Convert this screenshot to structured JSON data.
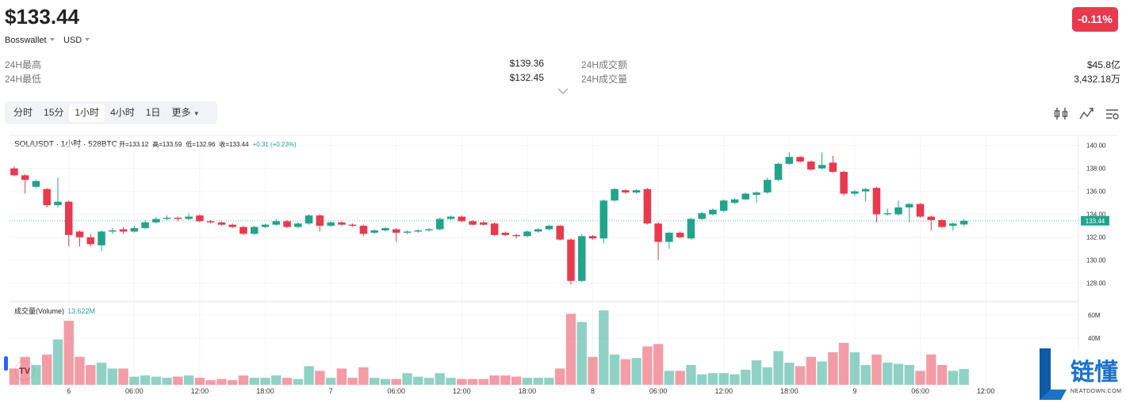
{
  "header": {
    "price": "$133.44",
    "change": "-0.11%",
    "wallet": "Bosswallet",
    "currency": "USD"
  },
  "stats": [
    {
      "label": "24H最高",
      "value": "$139.36"
    },
    {
      "label": "24H成交额",
      "value": "$45.8亿"
    },
    {
      "label": "24H最低",
      "value": "$132.45"
    },
    {
      "label": "24H成交量",
      "value": "3,432.18万"
    }
  ],
  "tabs": [
    "分时",
    "15分",
    "1小时",
    "4小时",
    "1日",
    "更多"
  ],
  "active_tab": 2,
  "chart_data": {
    "type": "candlestick",
    "title": "SOL/USDT · 1小时 · 528BTC",
    "ohlc_legend": [
      "开=133.12",
      "高=133.59",
      "低=132.96",
      "收=133.44",
      "+0.31 (+0.23%)"
    ],
    "up_color": "#22a38b",
    "down_color": "#e8394d",
    "open": [
      138.0,
      137.4,
      136.4,
      136.2,
      134.8,
      135.1,
      132.5,
      132.0,
      131.3,
      132.5,
      132.7,
      132.5,
      132.8,
      133.3,
      133.6,
      133.7,
      133.6,
      133.9,
      133.4,
      133.3,
      133.1,
      132.9,
      132.3,
      132.9,
      133.1,
      133.4,
      132.9,
      133.2,
      133.9,
      133.0,
      133.3,
      133.1,
      133.0,
      132.4,
      132.6,
      132.7,
      132.4,
      132.5,
      132.6,
      132.7,
      133.6,
      133.8,
      133.4,
      133.3,
      133.2,
      132.4,
      132.2,
      132.1,
      132.5,
      132.7,
      133.0,
      131.8,
      128.2,
      132.1,
      131.9,
      135.2,
      136.1,
      135.9,
      136.2,
      133.2,
      131.6,
      132.4,
      131.9,
      133.6,
      134.0,
      134.3,
      135.0,
      135.3,
      135.7,
      135.9,
      137.0,
      138.4,
      139.0,
      138.6,
      138.0,
      138.5,
      137.7,
      135.8,
      136.0,
      136.3,
      134.0,
      134.0,
      134.6,
      134.9,
      133.8,
      133.5,
      133.0,
      133.12
    ],
    "high": [
      138.2,
      137.5,
      137.0,
      136.3,
      137.2,
      135.2,
      132.6,
      132.3,
      132.6,
      132.8,
      132.9,
      133.0,
      133.5,
      133.8,
      133.9,
      133.8,
      134.1,
      134.0,
      133.5,
      133.4,
      133.2,
      133.0,
      133.0,
      133.2,
      133.6,
      133.5,
      133.3,
      134.0,
      134.0,
      133.4,
      133.4,
      133.2,
      133.1,
      132.7,
      132.9,
      132.8,
      132.6,
      132.7,
      132.8,
      133.7,
      133.9,
      133.9,
      133.5,
      133.4,
      133.3,
      132.5,
      132.3,
      132.6,
      132.8,
      133.1,
      133.1,
      131.9,
      132.3,
      132.2,
      135.3,
      136.3,
      136.2,
      136.2,
      136.3,
      133.3,
      132.5,
      132.5,
      133.7,
      134.2,
      134.5,
      135.3,
      135.4,
      135.9,
      136.0,
      137.2,
      138.5,
      139.4,
      139.1,
      138.7,
      139.4,
      139.1,
      137.8,
      136.1,
      136.3,
      136.4,
      134.5,
      135.2,
      135.0,
      135.0,
      133.9,
      133.6,
      133.3,
      133.59
    ],
    "low": [
      137.3,
      135.8,
      136.3,
      134.6,
      134.6,
      131.2,
      131.2,
      131.2,
      130.8,
      132.3,
      132.3,
      132.4,
      132.7,
      133.2,
      133.5,
      133.4,
      133.5,
      133.3,
      133.2,
      133.0,
      132.8,
      132.2,
      132.2,
      132.8,
      133.0,
      132.8,
      132.8,
      133.1,
      132.5,
      132.9,
      133.0,
      132.9,
      132.1,
      132.3,
      132.5,
      131.6,
      132.3,
      132.4,
      132.5,
      132.6,
      133.5,
      133.3,
      133.0,
      133.0,
      132.1,
      132.1,
      131.9,
      132.0,
      132.4,
      132.6,
      131.7,
      127.9,
      128.1,
      131.8,
      131.5,
      135.1,
      135.8,
      135.8,
      133.1,
      130.0,
      131.0,
      131.9,
      131.8,
      133.5,
      133.9,
      134.2,
      134.9,
      135.2,
      135.0,
      135.8,
      136.9,
      138.3,
      138.5,
      137.8,
      137.9,
      137.6,
      135.6,
      135.6,
      135.1,
      133.3,
      133.9,
      133.9,
      133.3,
      133.7,
      132.6,
      132.8,
      132.6,
      132.96
    ],
    "close": [
      137.4,
      137.0,
      136.9,
      134.8,
      135.1,
      132.2,
      132.0,
      131.4,
      132.5,
      132.6,
      132.5,
      132.8,
      133.3,
      133.6,
      133.7,
      133.6,
      133.8,
      133.4,
      133.3,
      133.1,
      132.9,
      132.3,
      132.9,
      133.1,
      133.4,
      132.9,
      133.2,
      133.9,
      133.0,
      133.3,
      133.1,
      133.0,
      132.3,
      132.6,
      132.8,
      132.4,
      132.5,
      132.6,
      132.7,
      133.6,
      133.8,
      133.4,
      133.1,
      133.1,
      132.2,
      132.2,
      132.1,
      132.5,
      132.7,
      133.0,
      131.8,
      128.2,
      132.1,
      131.9,
      135.2,
      136.2,
      135.9,
      136.1,
      133.2,
      131.6,
      132.4,
      132.0,
      133.6,
      134.1,
      134.4,
      135.2,
      135.3,
      135.8,
      135.9,
      137.0,
      138.4,
      139.0,
      138.6,
      137.9,
      138.3,
      137.7,
      135.8,
      136.0,
      136.2,
      134.0,
      134.1,
      134.6,
      134.9,
      133.8,
      133.5,
      132.9,
      133.2,
      133.44
    ],
    "ylim": [
      126.6,
      140.6
    ],
    "yticks": [
      {
        "value": 128,
        "label": "128.00"
      },
      {
        "value": 130,
        "label": "130.00"
      },
      {
        "value": 132,
        "label": "132.00"
      },
      {
        "value": 134,
        "label": "134.00"
      },
      {
        "value": 136,
        "label": "136.00"
      },
      {
        "value": 138,
        "label": "138.00"
      },
      {
        "value": 140,
        "label": "140.00"
      }
    ],
    "xlim": [
      -0.5,
      96.4
    ],
    "xticks": [
      {
        "value": 5,
        "label": "6"
      },
      {
        "value": 11,
        "label": "06:00"
      },
      {
        "value": 17,
        "label": "12:00"
      },
      {
        "value": 23,
        "label": "18:00"
      },
      {
        "value": 29,
        "label": "7"
      },
      {
        "value": 35,
        "label": "06:00"
      },
      {
        "value": 41,
        "label": "12:00"
      },
      {
        "value": 47,
        "label": "18:00"
      },
      {
        "value": 53,
        "label": "8"
      },
      {
        "value": 59,
        "label": "06:00"
      },
      {
        "value": 65,
        "label": "12:00"
      },
      {
        "value": 71,
        "label": "18:00"
      },
      {
        "value": 77,
        "label": "9"
      },
      {
        "value": 83,
        "label": "06:00"
      },
      {
        "value": 89,
        "label": "12:00"
      }
    ],
    "volume": {
      "title": "成交量(Volume)",
      "legend": "13.622M",
      "values": [
        14,
        24,
        17,
        26,
        39,
        55,
        24,
        17,
        19,
        14,
        14,
        7,
        8,
        7,
        6,
        7,
        8,
        6,
        4,
        5,
        4,
        8,
        6,
        6,
        8,
        6,
        5,
        16,
        12,
        6,
        14,
        6,
        15,
        6,
        5,
        5,
        10,
        7,
        6,
        10,
        6,
        5,
        5,
        5,
        8,
        8,
        7,
        6,
        6,
        6,
        14,
        61,
        54,
        24,
        64,
        26,
        22,
        23,
        33,
        35,
        12,
        12,
        17,
        9,
        10,
        10,
        9,
        13,
        21,
        15,
        29,
        19,
        16,
        24,
        20,
        28,
        36,
        28,
        17,
        26,
        19,
        18,
        17,
        12,
        26,
        17,
        12,
        13.622
      ],
      "ylim": [
        0,
        66
      ],
      "yticks": [
        {
          "value": 40,
          "label": "40M"
        },
        {
          "value": 60,
          "label": "60M"
        }
      ]
    }
  },
  "watermark": {
    "name": "链懂",
    "site": "NEATDOWN.COM"
  }
}
